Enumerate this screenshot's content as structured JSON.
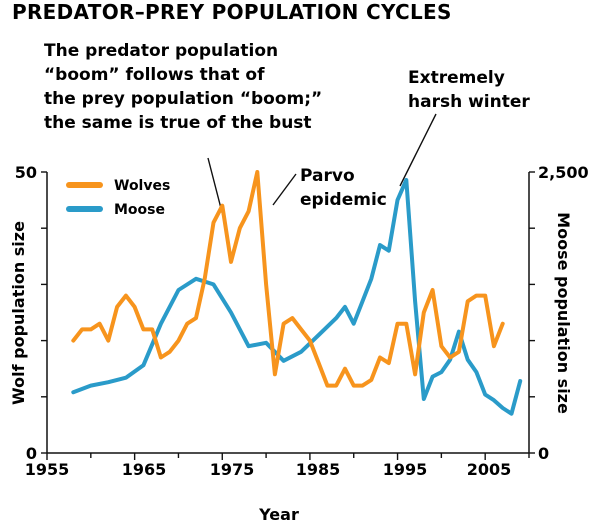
{
  "chart_data": {
    "type": "line",
    "title": "PREDATOR–PREY POPULATION CYCLES",
    "xlabel": "Year",
    "ylabel_left": "Wolf population size",
    "ylabel_right": "Moose population size",
    "xlim": [
      1955,
      2010
    ],
    "ylim_left": [
      0,
      50
    ],
    "ylim_right": [
      0,
      2500
    ],
    "x_ticks": [
      "1955",
      "1965",
      "1975",
      "1985",
      "1995",
      "2005"
    ],
    "y_left_ticks": [
      "0",
      "50"
    ],
    "y_right_ticks": [
      "0",
      "2,500"
    ],
    "grid": false,
    "legend": {
      "placement": "top-left"
    },
    "series": [
      {
        "name": "Wolves",
        "color": "#F7941D",
        "axis": "left",
        "x": [
          1958,
          1959,
          1960,
          1961,
          1962,
          1963,
          1964,
          1965,
          1966,
          1967,
          1968,
          1969,
          1970,
          1971,
          1972,
          1973,
          1974,
          1975,
          1976,
          1977,
          1978,
          1979,
          1980,
          1981,
          1982,
          1983,
          1984,
          1985,
          1986,
          1987,
          1988,
          1989,
          1990,
          1991,
          1992,
          1993,
          1994,
          1995,
          1996,
          1997,
          1998,
          1999,
          2000,
          2001,
          2002,
          2003,
          2004,
          2005,
          2006,
          2007,
          2008,
          2009
        ],
        "values": [
          20,
          22,
          22,
          23,
          20,
          26,
          28,
          26,
          22,
          22,
          17,
          18,
          20,
          23,
          24,
          31,
          41,
          44,
          34,
          40,
          43,
          50,
          30,
          14,
          23,
          24,
          22,
          20,
          16,
          12,
          12,
          15,
          12,
          12,
          13,
          17,
          16,
          23,
          23,
          14,
          25,
          29,
          19,
          17,
          18,
          27,
          28,
          28,
          19,
          23,
          null,
          null
        ]
      },
      {
        "name": "Moose",
        "color": "#2A9BC9",
        "axis": "right",
        "x": [
          1958,
          1960,
          1962,
          1964,
          1966,
          1968,
          1970,
          1972,
          1974,
          1976,
          1978,
          1980,
          1982,
          1984,
          1986,
          1988,
          1989,
          1990,
          1991,
          1992,
          1993,
          1994,
          1995,
          1996,
          1997,
          1998,
          1999,
          2000,
          2001,
          2002,
          2003,
          2004,
          2005,
          2006,
          2007,
          2008,
          2009
        ],
        "values": [
          540,
          600,
          630,
          670,
          780,
          1150,
          1450,
          1550,
          1500,
          1250,
          950,
          980,
          820,
          900,
          1050,
          1200,
          1300,
          1150,
          1350,
          1550,
          1850,
          1800,
          2250,
          2430,
          1350,
          480,
          680,
          720,
          830,
          1080,
          830,
          720,
          520,
          470,
          400,
          350,
          640
        ]
      }
    ],
    "annotations": {
      "boom_note": [
        "The predator population",
        "“boom” follows that of",
        "the prey population “boom;”",
        "the same is true of the bust"
      ],
      "winter_note": [
        "Extremely",
        "harsh winter"
      ],
      "parvo_note": [
        "Parvo",
        "epidemic"
      ]
    }
  }
}
